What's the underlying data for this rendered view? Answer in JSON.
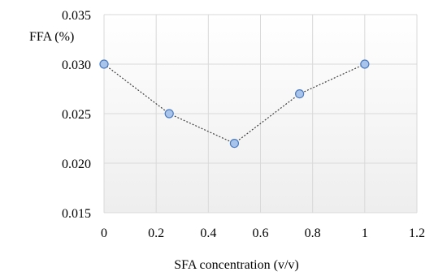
{
  "chart_data": {
    "type": "line",
    "xlabel": "SFA concentration (v/v)",
    "ylabel": "FFA (%)",
    "xlim": [
      0,
      1.2
    ],
    "ylim": [
      0.015,
      0.035
    ],
    "x_ticks": [
      "0",
      "0.2",
      "0.4",
      "0.6",
      "0.8",
      "1",
      "1.2"
    ],
    "y_ticks": [
      "0.015",
      "0.020",
      "0.025",
      "0.030",
      "0.035"
    ],
    "grid": true,
    "series": [
      {
        "x": [
          0,
          0.25,
          0.5,
          0.75,
          1
        ],
        "values": [
          0.03,
          0.025,
          0.022,
          0.027,
          0.03
        ]
      }
    ],
    "colors": {
      "line": "#404040",
      "marker_fill": "#a9c4ea",
      "marker_stroke": "#4a7ac0",
      "grid": "#d9d9d9",
      "plot_bg_top": "#ffffff",
      "plot_bg_bottom": "#eeeeee"
    }
  }
}
